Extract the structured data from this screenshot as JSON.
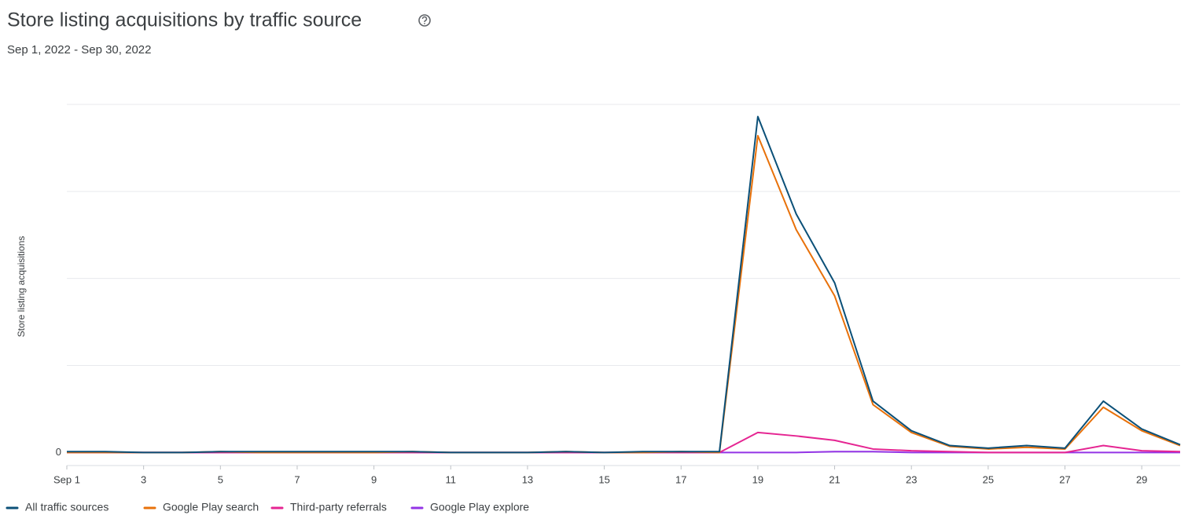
{
  "chart_data": {
    "type": "line",
    "title": "Store listing acquisitions by traffic source",
    "subtitle": "Sep 1, 2022 - Sep 30, 2022",
    "y_label": "Store listing acquisitions",
    "x": [
      1,
      2,
      3,
      4,
      5,
      6,
      7,
      8,
      9,
      10,
      11,
      12,
      13,
      14,
      15,
      16,
      17,
      18,
      19,
      20,
      21,
      22,
      23,
      24,
      25,
      26,
      27,
      28,
      29,
      30
    ],
    "xlim": [
      1,
      30
    ],
    "xticks": [
      {
        "value": 1,
        "label": "Sep 1"
      },
      3,
      5,
      7,
      9,
      11,
      13,
      15,
      17,
      19,
      21,
      23,
      25,
      27,
      29
    ],
    "ylim": [
      -0.15,
      4
    ],
    "yticks": [
      0
    ],
    "ygrid": [
      0,
      1,
      2,
      3,
      4
    ],
    "legend": "bottom-left",
    "series": [
      {
        "name": "All traffic sources",
        "color": "#0b5078",
        "values": [
          0.01,
          0.01,
          0,
          0,
          0.01,
          0.01,
          0.01,
          0.01,
          0.01,
          0.01,
          0,
          0,
          0,
          0.01,
          0,
          0.01,
          0.01,
          0.01,
          3.86,
          2.74,
          1.95,
          0.59,
          0.25,
          0.08,
          0.05,
          0.08,
          0.05,
          0.59,
          0.27,
          0.09
        ]
      },
      {
        "name": "Google Play search",
        "color": "#e8710a",
        "values": [
          0,
          0,
          0,
          0,
          0.01,
          0,
          0,
          0,
          0,
          0.01,
          0,
          0,
          0,
          0.01,
          0,
          0,
          0.01,
          0,
          3.64,
          2.56,
          1.8,
          0.55,
          0.23,
          0.07,
          0.04,
          0.06,
          0.04,
          0.52,
          0.25,
          0.08
        ]
      },
      {
        "name": "Third-party referrals",
        "color": "#e52592",
        "values": [
          0,
          0,
          0,
          0,
          0,
          0,
          0,
          0,
          0,
          0,
          0,
          0,
          0,
          0,
          0,
          0,
          0,
          0,
          0.23,
          0.19,
          0.14,
          0.04,
          0.02,
          0.01,
          0,
          0,
          0,
          0.08,
          0.02,
          0.01
        ]
      },
      {
        "name": "Google Play explore",
        "color": "#9334e6",
        "values": [
          0,
          0,
          0,
          0,
          0,
          0,
          0,
          0,
          0,
          0,
          0,
          0,
          0,
          0,
          0,
          0,
          0,
          0,
          0,
          0,
          0.01,
          0.01,
          0,
          0,
          0,
          0,
          0,
          0,
          0,
          0
        ]
      }
    ]
  }
}
